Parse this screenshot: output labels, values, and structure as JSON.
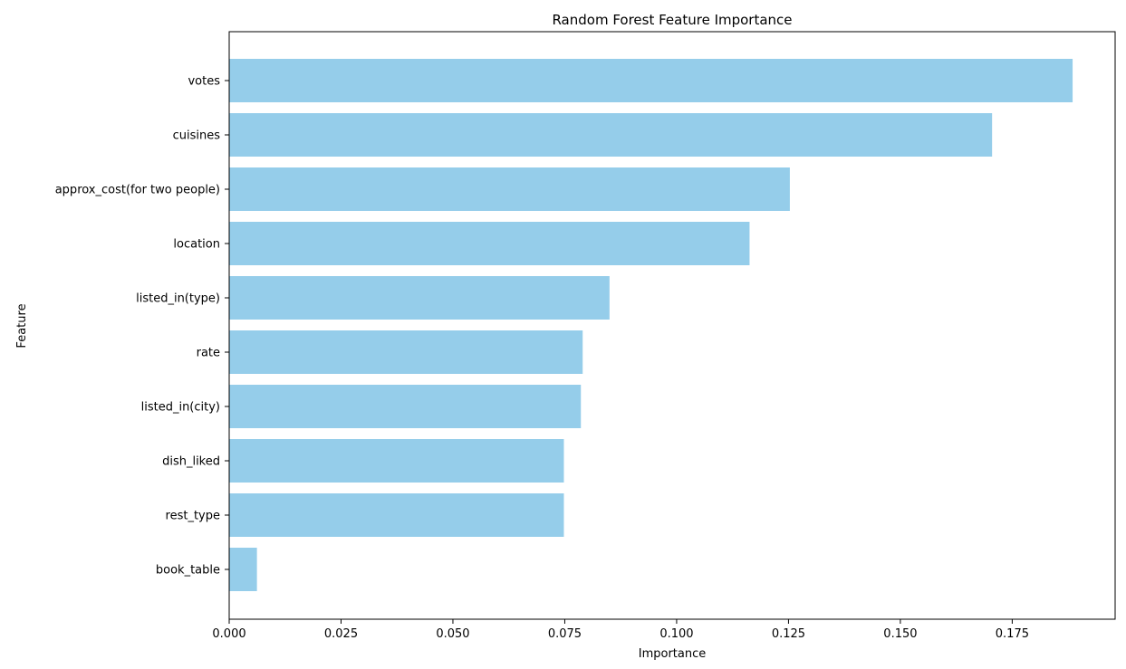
{
  "chart_data": {
    "type": "bar",
    "orientation": "horizontal",
    "title": "Random Forest Feature Importance",
    "xlabel": "Importance",
    "ylabel": "Feature",
    "categories": [
      "votes",
      "cuisines",
      "approx_cost(for two people)",
      "location",
      "listed_in(type)",
      "rate",
      "listed_in(city)",
      "dish_liked",
      "rest_type",
      "book_table"
    ],
    "values": [
      0.1885,
      0.1705,
      0.1253,
      0.1163,
      0.085,
      0.079,
      0.0786,
      0.0748,
      0.0748,
      0.0062
    ],
    "xticks": [
      "0.000",
      "0.025",
      "0.050",
      "0.075",
      "0.100",
      "0.125",
      "0.150",
      "0.175"
    ],
    "xlim": [
      0,
      0.198
    ],
    "bar_color": "#95cdea",
    "grid": false,
    "legend": false
  }
}
